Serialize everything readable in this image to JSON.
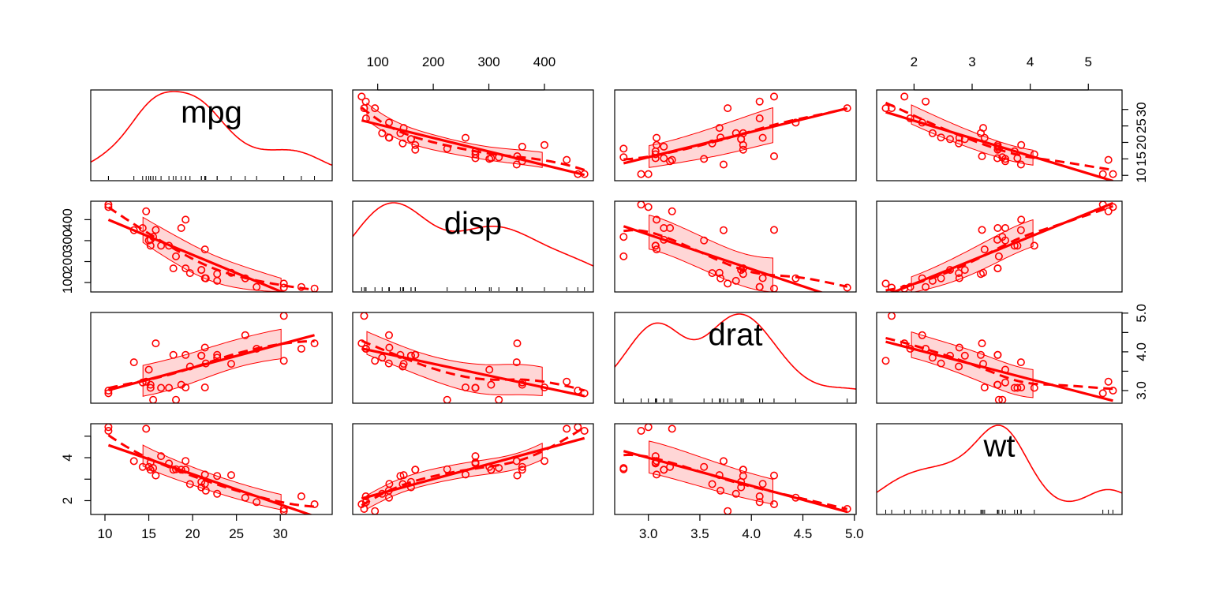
{
  "chart_data": {
    "type": "scatter",
    "variables": [
      "mpg",
      "disp",
      "drat",
      "wt"
    ],
    "colors": {
      "points": "#ff0000",
      "band": "#ffd6d6",
      "axis": "#000000"
    },
    "diagonal": "density",
    "grid": false,
    "axes": {
      "mpg": {
        "range": [
          9.4,
          34.9
        ],
        "ticks": [
          10,
          15,
          20,
          25,
          30
        ],
        "tick_labels": [
          "10",
          "15",
          "20",
          "25",
          "30"
        ]
      },
      "disp": {
        "range": [
          71.1,
          472
        ],
        "ticks": [
          100,
          200,
          300,
          400
        ],
        "tick_labels": [
          "100",
          "200",
          "300",
          "400"
        ]
      },
      "drat": {
        "range": [
          2.76,
          4.93
        ],
        "ticks": [
          3.0,
          3.5,
          4.0,
          4.5,
          5.0
        ],
        "tick_labels": [
          "3.0",
          "3.5",
          "4.0",
          "4.5",
          "5.0"
        ],
        "tick_labels_side": [
          "3.0",
          "4.0",
          "5.0"
        ]
      },
      "wt": {
        "range": [
          1.513,
          5.424
        ],
        "ticks": [
          2,
          3,
          4,
          5
        ],
        "tick_labels": [
          "2",
          "3",
          "4",
          "5"
        ],
        "tick_labels_side": [
          "2",
          "4"
        ]
      }
    },
    "axis_placement": {
      "top": [
        "disp",
        "wt"
      ],
      "bottom": [
        "mpg",
        "drat"
      ],
      "left": [
        "disp",
        "wt"
      ],
      "right": [
        "mpg",
        "drat"
      ]
    },
    "points": [
      {
        "mpg": 21.0,
        "disp": 160.0,
        "drat": 3.9,
        "wt": 2.62
      },
      {
        "mpg": 21.0,
        "disp": 160.0,
        "drat": 3.9,
        "wt": 2.875
      },
      {
        "mpg": 22.8,
        "disp": 108.0,
        "drat": 3.85,
        "wt": 2.32
      },
      {
        "mpg": 21.4,
        "disp": 258.0,
        "drat": 3.08,
        "wt": 3.215
      },
      {
        "mpg": 18.7,
        "disp": 360.0,
        "drat": 3.15,
        "wt": 3.44
      },
      {
        "mpg": 18.1,
        "disp": 225.0,
        "drat": 2.76,
        "wt": 3.46
      },
      {
        "mpg": 14.3,
        "disp": 360.0,
        "drat": 3.21,
        "wt": 3.57
      },
      {
        "mpg": 24.4,
        "disp": 146.7,
        "drat": 3.69,
        "wt": 3.19
      },
      {
        "mpg": 22.8,
        "disp": 140.8,
        "drat": 3.92,
        "wt": 3.15
      },
      {
        "mpg": 19.2,
        "disp": 167.6,
        "drat": 3.92,
        "wt": 3.44
      },
      {
        "mpg": 17.8,
        "disp": 167.6,
        "drat": 3.92,
        "wt": 3.44
      },
      {
        "mpg": 16.4,
        "disp": 275.8,
        "drat": 3.07,
        "wt": 4.07
      },
      {
        "mpg": 17.3,
        "disp": 275.8,
        "drat": 3.07,
        "wt": 3.73
      },
      {
        "mpg": 15.2,
        "disp": 275.8,
        "drat": 3.07,
        "wt": 3.78
      },
      {
        "mpg": 10.4,
        "disp": 472.0,
        "drat": 2.93,
        "wt": 5.25
      },
      {
        "mpg": 10.4,
        "disp": 460.0,
        "drat": 3.0,
        "wt": 5.424
      },
      {
        "mpg": 14.7,
        "disp": 440.0,
        "drat": 3.23,
        "wt": 5.345
      },
      {
        "mpg": 32.4,
        "disp": 78.7,
        "drat": 4.08,
        "wt": 2.2
      },
      {
        "mpg": 30.4,
        "disp": 75.7,
        "drat": 4.93,
        "wt": 1.615
      },
      {
        "mpg": 33.9,
        "disp": 71.1,
        "drat": 4.22,
        "wt": 1.835
      },
      {
        "mpg": 21.5,
        "disp": 120.1,
        "drat": 3.7,
        "wt": 2.465
      },
      {
        "mpg": 15.5,
        "disp": 318.0,
        "drat": 2.76,
        "wt": 3.52
      },
      {
        "mpg": 15.2,
        "disp": 304.0,
        "drat": 3.15,
        "wt": 3.435
      },
      {
        "mpg": 13.3,
        "disp": 350.0,
        "drat": 3.73,
        "wt": 3.84
      },
      {
        "mpg": 19.2,
        "disp": 400.0,
        "drat": 3.08,
        "wt": 3.845
      },
      {
        "mpg": 27.3,
        "disp": 79.0,
        "drat": 4.08,
        "wt": 1.935
      },
      {
        "mpg": 26.0,
        "disp": 120.3,
        "drat": 4.43,
        "wt": 2.14
      },
      {
        "mpg": 30.4,
        "disp": 95.1,
        "drat": 3.77,
        "wt": 1.513
      },
      {
        "mpg": 15.8,
        "disp": 351.0,
        "drat": 4.22,
        "wt": 3.17
      },
      {
        "mpg": 19.7,
        "disp": 145.0,
        "drat": 3.62,
        "wt": 2.77
      },
      {
        "mpg": 15.0,
        "disp": 301.0,
        "drat": 3.54,
        "wt": 3.57
      },
      {
        "mpg": 21.4,
        "disp": 121.0,
        "drat": 4.11,
        "wt": 2.78
      }
    ],
    "off_diagonal_overlays": [
      "points",
      "linear-fit-solid",
      "smoother-dashed",
      "spread-band"
    ]
  }
}
